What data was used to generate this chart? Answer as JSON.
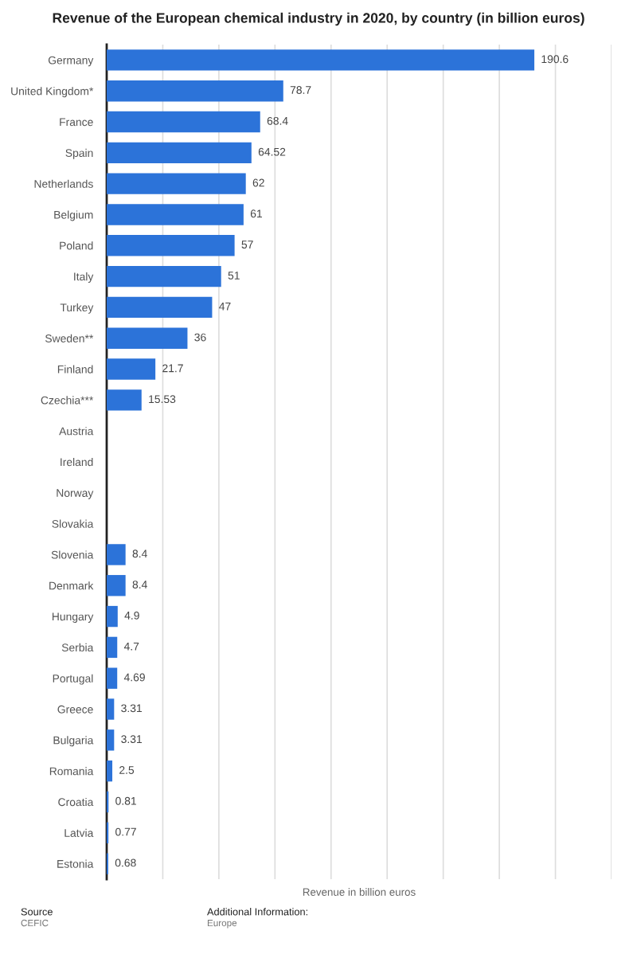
{
  "chart_data": {
    "type": "bar",
    "orientation": "horizontal",
    "title": "Revenue of the European chemical industry in 2020, by country (in billion euros)",
    "xlabel": "Revenue in billion euros",
    "categories": [
      "Germany",
      "United Kingdom*",
      "France",
      "Spain",
      "Netherlands",
      "Belgium",
      "Poland",
      "Italy",
      "Turkey",
      "Sweden**",
      "Finland",
      "Czechia***",
      "Austria",
      "Ireland",
      "Norway",
      "Slovakia",
      "Slovenia",
      "Denmark",
      "Hungary",
      "Serbia",
      "Portugal",
      "Greece",
      "Bulgaria",
      "Romania",
      "Croatia",
      "Latvia",
      "Estonia"
    ],
    "values": [
      190.6,
      78.7,
      68.4,
      64.52,
      62,
      61,
      57,
      51,
      47,
      36,
      21.7,
      15.53,
      null,
      null,
      null,
      null,
      8.4,
      8.4,
      4.9,
      4.7,
      4.69,
      3.31,
      3.31,
      2.5,
      0.81,
      0.77,
      0.68
    ],
    "color": "#2c73d9",
    "xlim": [
      0,
      225
    ],
    "xticks": [
      {
        "value": 0,
        "label": null
      },
      {
        "value": 25,
        "label": null
      },
      {
        "value": 50,
        "label": null
      },
      {
        "value": 75,
        "label": null
      },
      {
        "value": 100,
        "label": null
      },
      {
        "value": 125,
        "label": null
      },
      {
        "value": 150,
        "label": null
      },
      {
        "value": 175,
        "label": null
      },
      {
        "value": 200,
        "label": null
      },
      {
        "value": 225,
        "label": null
      }
    ],
    "grid": "x",
    "tick_labels": "y",
    "data_labels": true,
    "annotations": [
      "Source",
      "CEFIC",
      "Additional Information:",
      "Europe"
    ]
  }
}
